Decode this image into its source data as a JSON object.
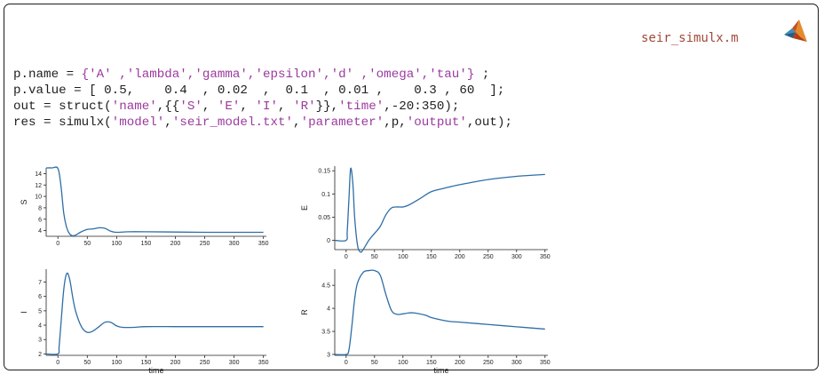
{
  "file": {
    "name": "seir_simulx.m",
    "icon": "matlab-logo-icon"
  },
  "code": {
    "lines": [
      [
        {
          "t": "p.name = "
        },
        {
          "t": "{'A' ,'lambda','gamma','epsilon','d' ,'omega','tau'}",
          "s": 1
        },
        {
          "t": " ;"
        }
      ],
      [
        {
          "t": "p.value = [ 0.5,    0.4  , 0.02  ,  0.1  , 0.01 ,    0.3 , 60  ];"
        }
      ],
      [
        {
          "t": "out = struct("
        },
        {
          "t": "'name'",
          "s": 1
        },
        {
          "t": ",{{"
        },
        {
          "t": "'S'",
          "s": 1
        },
        {
          "t": ", "
        },
        {
          "t": "'E'",
          "s": 1
        },
        {
          "t": ", "
        },
        {
          "t": "'I'",
          "s": 1
        },
        {
          "t": ", "
        },
        {
          "t": "'R'",
          "s": 1
        },
        {
          "t": "}},"
        },
        {
          "t": "'time'",
          "s": 1
        },
        {
          "t": ",-20:350);"
        }
      ],
      [
        {
          "t": "res = simulx("
        },
        {
          "t": "'model'",
          "s": 1
        },
        {
          "t": ","
        },
        {
          "t": "'seir_model.txt'",
          "s": 1
        },
        {
          "t": ","
        },
        {
          "t": "'parameter'",
          "s": 1
        },
        {
          "t": ",p,"
        },
        {
          "t": "'output'",
          "s": 1
        },
        {
          "t": ",out);"
        }
      ]
    ]
  },
  "colors": {
    "series": "#2e6ea6",
    "string": "#9b3a9e",
    "filename": "#a14a3a"
  },
  "chart_data": [
    {
      "type": "line",
      "title": "",
      "xlabel": "",
      "ylabel": "S",
      "xlim": [
        -20,
        355
      ],
      "ylim": [
        3,
        15
      ],
      "xticks": [
        0,
        50,
        100,
        150,
        200,
        250,
        300,
        350
      ],
      "yticks": [
        4,
        6,
        8,
        10,
        12,
        14
      ],
      "x": [
        -20,
        -10,
        0,
        5,
        10,
        15,
        20,
        25,
        30,
        40,
        50,
        60,
        70,
        80,
        90,
        100,
        120,
        150,
        200,
        250,
        300,
        350
      ],
      "y": [
        15,
        15,
        14.9,
        12,
        7,
        4.5,
        3.4,
        3.1,
        3.2,
        3.8,
        4.2,
        4.3,
        4.5,
        4.4,
        3.9,
        3.7,
        3.8,
        3.8,
        3.75,
        3.7,
        3.7,
        3.7
      ]
    },
    {
      "type": "line",
      "title": "",
      "xlabel": "",
      "ylabel": "E",
      "xlim": [
        -20,
        355
      ],
      "ylim": [
        -0.02,
        0.16
      ],
      "xticks": [
        0,
        50,
        100,
        150,
        200,
        250,
        300,
        350
      ],
      "yticks": [
        0,
        0.05,
        0.1,
        0.15
      ],
      "x": [
        -20,
        0,
        2,
        5,
        8,
        12,
        15,
        20,
        25,
        30,
        40,
        50,
        60,
        70,
        80,
        90,
        100,
        110,
        130,
        150,
        175,
        200,
        250,
        300,
        350
      ],
      "y": [
        0,
        0,
        0.02,
        0.09,
        0.155,
        0.12,
        0.05,
        -0.01,
        -0.025,
        -0.02,
        0.0,
        0.015,
        0.03,
        0.055,
        0.07,
        0.072,
        0.072,
        0.076,
        0.09,
        0.105,
        0.113,
        0.12,
        0.131,
        0.138,
        0.142
      ]
    },
    {
      "type": "line",
      "title": "",
      "xlabel": "time",
      "ylabel": "I",
      "xlim": [
        -20,
        355
      ],
      "ylim": [
        1.9,
        7.9
      ],
      "xticks": [
        0,
        50,
        100,
        150,
        200,
        250,
        300,
        350
      ],
      "yticks": [
        2,
        3,
        4,
        5,
        6,
        7
      ],
      "x": [
        -20,
        0,
        2,
        5,
        10,
        15,
        20,
        25,
        30,
        40,
        50,
        60,
        70,
        80,
        90,
        100,
        110,
        130,
        150,
        200,
        250,
        300,
        350
      ],
      "y": [
        2,
        2,
        2.5,
        4,
        6.5,
        7.6,
        7.2,
        6,
        5,
        3.9,
        3.5,
        3.6,
        3.9,
        4.2,
        4.2,
        3.95,
        3.85,
        3.85,
        3.9,
        3.9,
        3.9,
        3.9,
        3.9
      ]
    },
    {
      "type": "line",
      "title": "",
      "xlabel": "time",
      "ylabel": "R",
      "xlim": [
        -20,
        355
      ],
      "ylim": [
        2.98,
        4.85
      ],
      "xticks": [
        0,
        50,
        100,
        150,
        200,
        250,
        300,
        350
      ],
      "yticks": [
        3,
        3.5,
        4,
        4.5
      ],
      "x": [
        -20,
        0,
        5,
        10,
        15,
        20,
        30,
        40,
        50,
        60,
        70,
        80,
        90,
        100,
        110,
        120,
        140,
        150,
        180,
        200,
        250,
        300,
        350
      ],
      "y": [
        3,
        3,
        3.1,
        3.6,
        4.2,
        4.55,
        4.78,
        4.82,
        4.82,
        4.72,
        4.3,
        3.95,
        3.87,
        3.88,
        3.9,
        3.9,
        3.85,
        3.8,
        3.72,
        3.7,
        3.65,
        3.6,
        3.55
      ]
    }
  ]
}
